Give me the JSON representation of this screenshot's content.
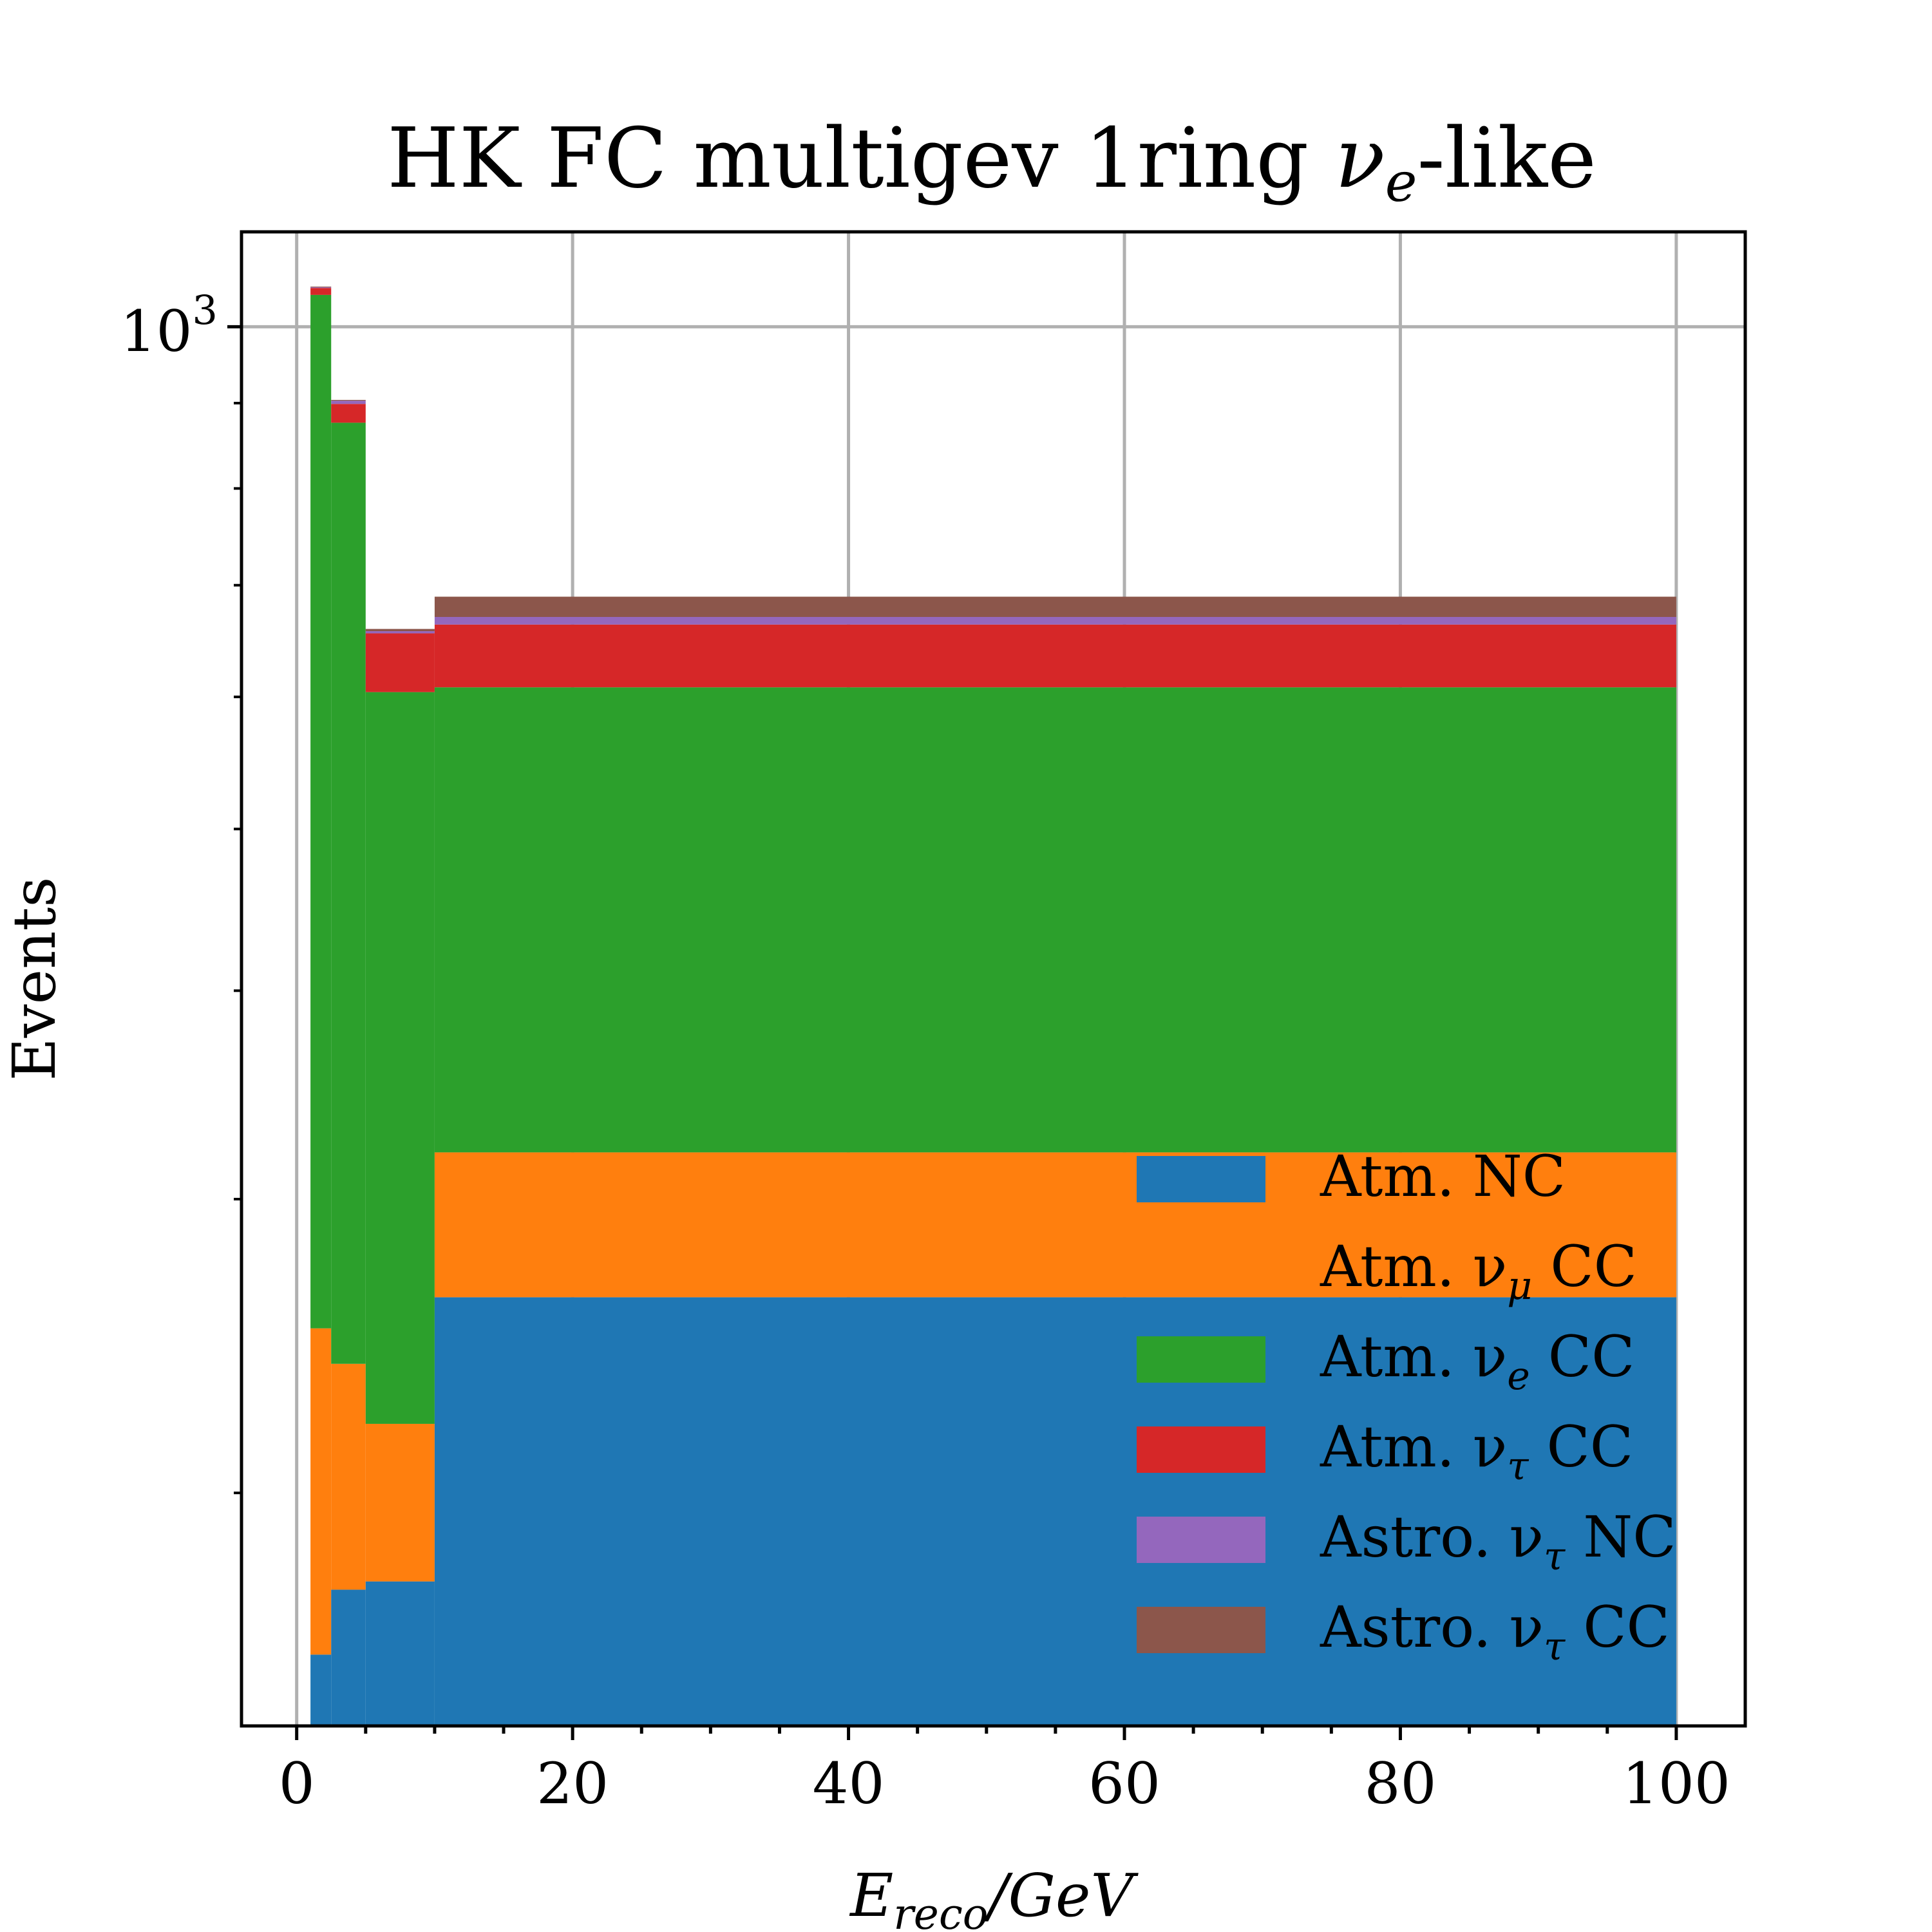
{
  "chart_data": {
    "type": "bar",
    "stacked": true,
    "title": "HK FC multigev 1ring",
    "title_math": "ν",
    "title_math_sub": "e",
    "title_suffix": "-like",
    "xlabel_main": "E",
    "xlabel_sub": "reco",
    "xlabel_rest": "/GeV",
    "ylabel": "Events",
    "y_scale": "log",
    "ylim": [
      145,
      1140
    ],
    "xlim": [
      -4,
      105
    ],
    "x_ticks": [
      0,
      20,
      40,
      60,
      80,
      100
    ],
    "y_major_label": {
      "base": "10",
      "exp": "3",
      "value": 1000
    },
    "grid": true,
    "legend_position": "lower-right",
    "bin_edges": [
      1,
      2.5,
      5,
      10,
      100
    ],
    "series": [
      {
        "name": "Atm. NC",
        "label_main": "Atm. NC",
        "label_sub": "",
        "label_end": "",
        "color": "#1f77b4",
        "values": [
          160,
          175,
          177,
          262
        ]
      },
      {
        "name": "Atm. νμ CC",
        "label_main": "Atm. ν",
        "label_sub": "μ",
        "label_end": " CC",
        "color": "#ff7f0e",
        "values": [
          91,
          64,
          43,
          58
        ]
      },
      {
        "name": "Atm. νe CC",
        "label_main": "Atm. ν",
        "label_sub": "e",
        "label_end": " CC",
        "color": "#2ca02c",
        "values": [
          794,
          637,
          384,
          288
        ]
      },
      {
        "name": "Atm. ντ CC",
        "label_main": "Atm. ν",
        "label_sub": "τ",
        "label_end": " CC",
        "color": "#d62728",
        "values": [
          10,
          23,
          51,
          55
        ]
      },
      {
        "name": "Astro. ντ NC",
        "label_main": "Astro. ν",
        "label_sub": "τ",
        "label_end": " NC",
        "color": "#9467bd",
        "values": [
          1,
          4,
          2,
          7
        ]
      },
      {
        "name": "Astro. ντ CC",
        "label_main": "Astro. ν",
        "label_sub": "τ",
        "label_end": " CC",
        "color": "#8c564b",
        "values": [
          1,
          1,
          2,
          19
        ]
      }
    ]
  }
}
